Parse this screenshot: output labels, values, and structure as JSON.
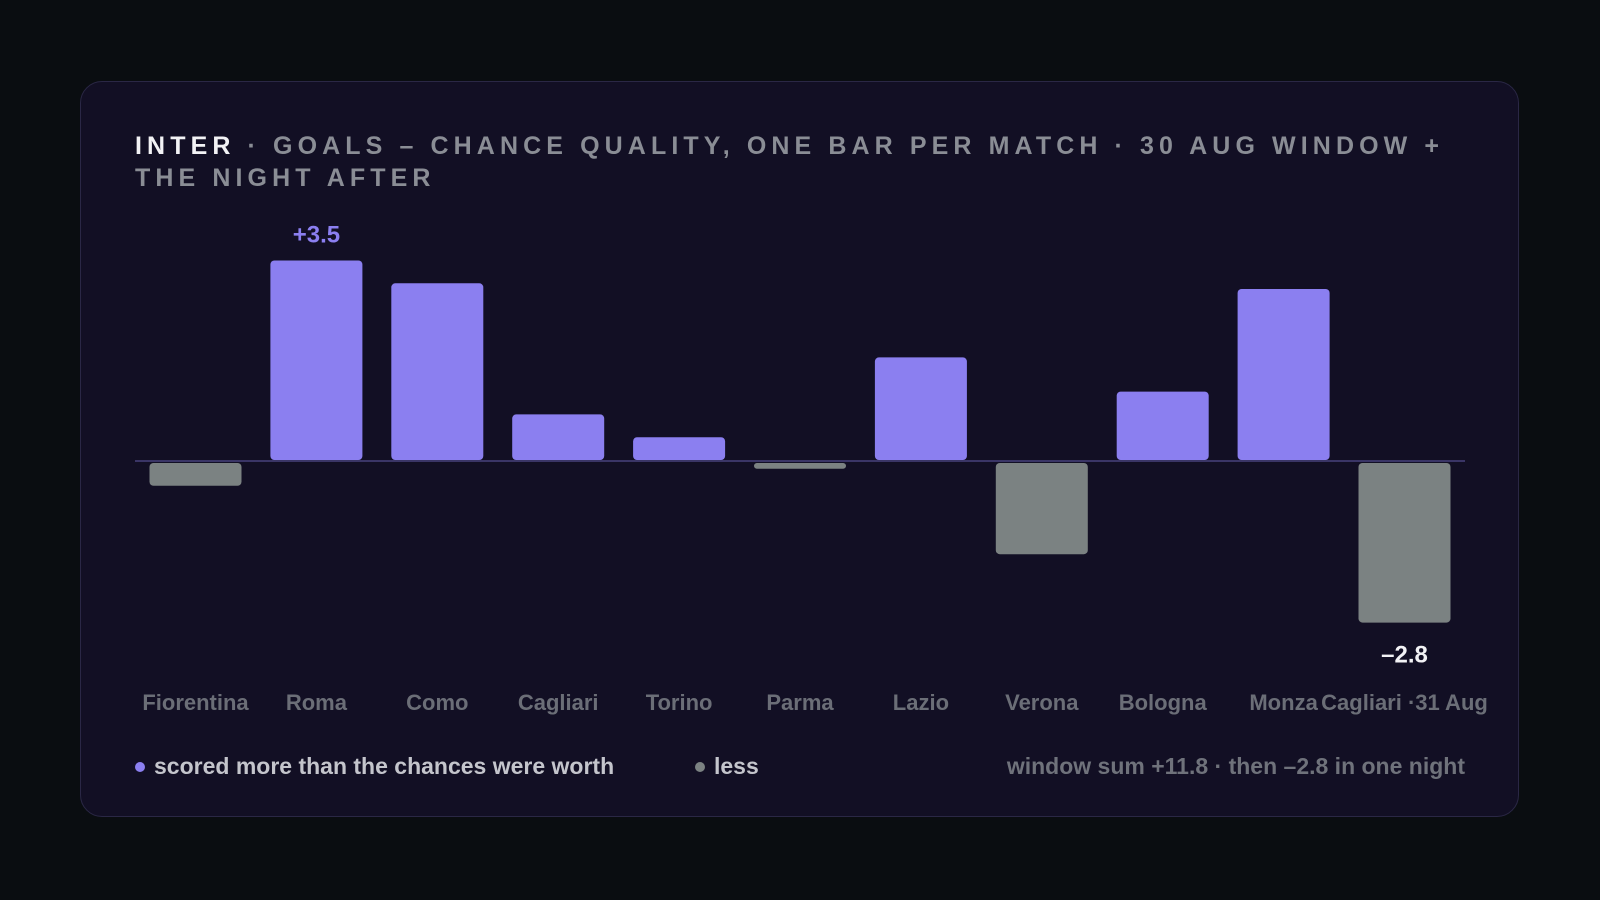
{
  "title": {
    "team": "INTER",
    "rest": " · GOALS – CHANCE QUALITY, ONE BAR PER MATCH · 30 AUG WINDOW + THE NIGHT AFTER"
  },
  "colors": {
    "background": "#0a0d11",
    "card": "#120f24",
    "positive": "#8b7ff0",
    "negative": "#7b8282",
    "baseline": "#3a3566",
    "tick_label": "#6b6e77",
    "label_negative": "#f2f2f5"
  },
  "chart_data": {
    "type": "bar",
    "categories": [
      "Fiorentina",
      "Roma",
      "Como",
      "Cagliari",
      "Torino",
      "Parma",
      "Lazio",
      "Verona",
      "Bologna",
      "Monza",
      "Cagliari ·31 Aug"
    ],
    "values": [
      -0.4,
      3.5,
      3.1,
      0.8,
      0.4,
      -0.1,
      1.8,
      -1.6,
      1.2,
      3.0,
      -2.8
    ],
    "data_labels": [
      {
        "index": 1,
        "text": "+3.5",
        "color": "positive"
      },
      {
        "index": 10,
        "text": "–2.8",
        "color": "label_negative"
      }
    ],
    "ylim": [
      -3.0,
      3.6
    ],
    "grid": false,
    "xlabel": "",
    "ylabel": ""
  },
  "legend": {
    "positive_label": "scored more than the chances were worth",
    "negative_label": "less",
    "note": "window sum +11.8 · then –2.8 in one night"
  }
}
